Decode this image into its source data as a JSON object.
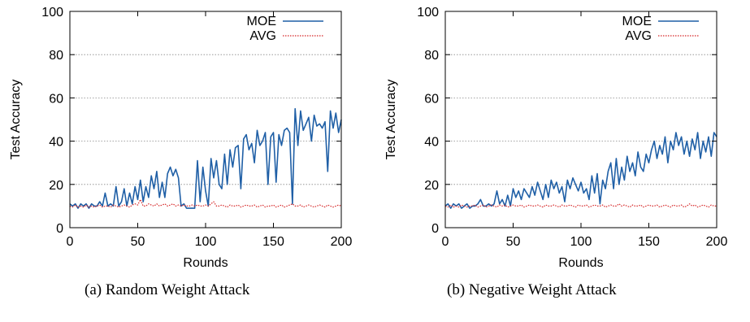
{
  "chart_data": [
    {
      "type": "line",
      "caption": "(a) Random Weight Attack",
      "xlabel": "Rounds",
      "ylabel": "Test Accuracy",
      "xlim": [
        0,
        200
      ],
      "ylim": [
        0,
        100
      ],
      "xticks": [
        0,
        50,
        100,
        150,
        200
      ],
      "yticks": [
        0,
        20,
        40,
        60,
        80,
        100
      ],
      "grid": "horizontal dotted",
      "legend_position": "top-right",
      "series": [
        {
          "name": "MOE",
          "color": "#1f5fa6",
          "style": "solid",
          "x": [
            0,
            2,
            4,
            6,
            8,
            10,
            12,
            14,
            16,
            18,
            20,
            22,
            24,
            26,
            28,
            30,
            32,
            34,
            36,
            38,
            40,
            42,
            44,
            46,
            48,
            50,
            52,
            54,
            56,
            58,
            60,
            62,
            64,
            66,
            68,
            70,
            72,
            74,
            76,
            78,
            80,
            82,
            84,
            86,
            88,
            90,
            92,
            94,
            96,
            98,
            100,
            102,
            104,
            106,
            108,
            110,
            112,
            114,
            116,
            118,
            120,
            122,
            124,
            126,
            128,
            130,
            132,
            134,
            136,
            138,
            140,
            142,
            144,
            146,
            148,
            150,
            152,
            154,
            156,
            158,
            160,
            162,
            164,
            166,
            168,
            170,
            172,
            174,
            176,
            178,
            180,
            182,
            184,
            186,
            188,
            190,
            192,
            194,
            196,
            198,
            200
          ],
          "y": [
            11,
            10,
            11,
            9,
            11,
            10,
            11,
            9,
            11,
            10,
            10,
            12,
            10,
            16,
            10,
            11,
            10,
            19,
            10,
            12,
            18,
            10,
            16,
            11,
            19,
            13,
            22,
            12,
            19,
            14,
            24,
            18,
            26,
            14,
            21,
            14,
            25,
            28,
            24,
            27,
            23,
            10,
            11,
            9,
            9,
            9,
            9,
            31,
            12,
            28,
            17,
            10,
            32,
            23,
            31,
            20,
            18,
            34,
            20,
            36,
            28,
            37,
            38,
            18,
            41,
            43,
            36,
            39,
            30,
            45,
            38,
            40,
            44,
            20,
            42,
            44,
            21,
            43,
            38,
            45,
            46,
            44,
            11,
            55,
            38,
            54,
            45,
            48,
            51,
            40,
            52,
            47,
            48,
            46,
            49,
            26,
            54,
            46,
            53,
            44,
            50
          ]
        },
        {
          "name": "AVG",
          "color": "#d62728",
          "style": "dotted",
          "x": [
            0,
            2,
            4,
            6,
            8,
            10,
            12,
            14,
            16,
            18,
            20,
            22,
            24,
            26,
            28,
            30,
            32,
            34,
            36,
            38,
            40,
            42,
            44,
            46,
            48,
            50,
            52,
            54,
            56,
            58,
            60,
            62,
            64,
            66,
            68,
            70,
            72,
            74,
            76,
            78,
            80,
            82,
            84,
            86,
            88,
            90,
            92,
            94,
            96,
            98,
            100,
            102,
            104,
            106,
            108,
            110,
            112,
            114,
            116,
            118,
            120,
            122,
            124,
            126,
            128,
            130,
            132,
            134,
            136,
            138,
            140,
            142,
            144,
            146,
            148,
            150,
            152,
            154,
            156,
            158,
            160,
            162,
            164,
            166,
            168,
            170,
            172,
            174,
            176,
            178,
            180,
            182,
            184,
            186,
            188,
            190,
            192,
            194,
            196,
            198,
            200
          ],
          "y": [
            10,
            9.5,
            10.5,
            9.5,
            10,
            9.5,
            10.5,
            9.5,
            10,
            9.5,
            10,
            10.5,
            9.5,
            10,
            10,
            9.5,
            10.5,
            10,
            9.5,
            10,
            10.5,
            10,
            9.5,
            10.5,
            11,
            10.5,
            13,
            10,
            10,
            11,
            10.5,
            10,
            11,
            10,
            10.5,
            11,
            10,
            10.5,
            11,
            10,
            10.5,
            10,
            10.5,
            10,
            10,
            10.5,
            10,
            10.5,
            10,
            10,
            10.5,
            10,
            11,
            12,
            10,
            10,
            10.5,
            10,
            9.5,
            10.5,
            10,
            10,
            10.5,
            9.5,
            10,
            10.5,
            10,
            10,
            10.5,
            9.5,
            10,
            10.5,
            9.5,
            10,
            10,
            10.5,
            9.5,
            10,
            10.5,
            9.5,
            10,
            10.5,
            11,
            10,
            10,
            10.5,
            9.5,
            10,
            10.5,
            10,
            9.5,
            10,
            10.5,
            10,
            9.5,
            10.5,
            10,
            9.5,
            10,
            10.5,
            10
          ]
        }
      ]
    },
    {
      "type": "line",
      "caption": "(b) Negative Weight Attack",
      "xlabel": "Rounds",
      "ylabel": "Test Accuracy",
      "xlim": [
        0,
        200
      ],
      "ylim": [
        0,
        100
      ],
      "xticks": [
        0,
        50,
        100,
        150,
        200
      ],
      "yticks": [
        0,
        20,
        40,
        60,
        80,
        100
      ],
      "grid": "horizontal dotted",
      "legend_position": "top-right",
      "series": [
        {
          "name": "MOE",
          "color": "#1f5fa6",
          "style": "solid",
          "x": [
            0,
            2,
            4,
            6,
            8,
            10,
            12,
            14,
            16,
            18,
            20,
            22,
            24,
            26,
            28,
            30,
            32,
            34,
            36,
            38,
            40,
            42,
            44,
            46,
            48,
            50,
            52,
            54,
            56,
            58,
            60,
            62,
            64,
            66,
            68,
            70,
            72,
            74,
            76,
            78,
            80,
            82,
            84,
            86,
            88,
            90,
            92,
            94,
            96,
            98,
            100,
            102,
            104,
            106,
            108,
            110,
            112,
            114,
            116,
            118,
            120,
            122,
            124,
            126,
            128,
            130,
            132,
            134,
            136,
            138,
            140,
            142,
            144,
            146,
            148,
            150,
            152,
            154,
            156,
            158,
            160,
            162,
            164,
            166,
            168,
            170,
            172,
            174,
            176,
            178,
            180,
            182,
            184,
            186,
            188,
            190,
            192,
            194,
            196,
            198,
            200
          ],
          "y": [
            10,
            11,
            9,
            11,
            10,
            11,
            9,
            10,
            11,
            9,
            10,
            10,
            11,
            13,
            10,
            10,
            11,
            10,
            11,
            17,
            11,
            13,
            10,
            15,
            10,
            18,
            14,
            17,
            13,
            18,
            16,
            14,
            19,
            15,
            21,
            17,
            13,
            20,
            14,
            22,
            18,
            21,
            16,
            19,
            12,
            22,
            18,
            23,
            20,
            17,
            21,
            16,
            18,
            13,
            24,
            16,
            25,
            11,
            22,
            18,
            26,
            30,
            18,
            32,
            20,
            28,
            22,
            33,
            26,
            30,
            24,
            35,
            28,
            26,
            34,
            30,
            36,
            40,
            32,
            38,
            34,
            42,
            30,
            40,
            36,
            44,
            38,
            42,
            34,
            40,
            33,
            41,
            36,
            44,
            32,
            40,
            35,
            42,
            33,
            44,
            42
          ]
        },
        {
          "name": "AVG",
          "color": "#d62728",
          "style": "dotted",
          "x": [
            0,
            2,
            4,
            6,
            8,
            10,
            12,
            14,
            16,
            18,
            20,
            22,
            24,
            26,
            28,
            30,
            32,
            34,
            36,
            38,
            40,
            42,
            44,
            46,
            48,
            50,
            52,
            54,
            56,
            58,
            60,
            62,
            64,
            66,
            68,
            70,
            72,
            74,
            76,
            78,
            80,
            82,
            84,
            86,
            88,
            90,
            92,
            94,
            96,
            98,
            100,
            102,
            104,
            106,
            108,
            110,
            112,
            114,
            116,
            118,
            120,
            122,
            124,
            126,
            128,
            130,
            132,
            134,
            136,
            138,
            140,
            142,
            144,
            146,
            148,
            150,
            152,
            154,
            156,
            158,
            160,
            162,
            164,
            166,
            168,
            170,
            172,
            174,
            176,
            178,
            180,
            182,
            184,
            186,
            188,
            190,
            192,
            194,
            196,
            198,
            200
          ],
          "y": [
            10,
            9.5,
            10.5,
            9.5,
            10,
            9.5,
            10.5,
            10,
            9.5,
            10,
            10,
            10.5,
            9.5,
            10,
            10.5,
            9.5,
            10,
            10.5,
            10,
            9.5,
            10.5,
            10,
            10.5,
            9.5,
            10,
            10.5,
            10,
            10,
            10.5,
            9.5,
            10,
            10.5,
            10,
            10,
            10.5,
            10,
            9.5,
            10.5,
            10,
            10,
            10.5,
            10,
            9.5,
            10.5,
            10,
            10,
            10.5,
            10,
            9.5,
            10.5,
            10,
            10,
            10.5,
            9.5,
            10,
            10.5,
            10,
            10,
            10.5,
            9.5,
            10,
            10.5,
            10,
            10,
            11,
            10,
            10.5,
            10,
            9.5,
            10.5,
            10,
            10,
            10.5,
            9.5,
            10,
            10.5,
            10,
            10,
            10.5,
            9.5,
            10,
            10.5,
            10,
            9.5,
            10.5,
            10,
            10,
            10.5,
            9.5,
            10,
            11,
            10,
            10.5,
            9.5,
            10,
            10.5,
            10,
            9.5,
            10.5,
            10,
            10
          ]
        }
      ]
    }
  ]
}
